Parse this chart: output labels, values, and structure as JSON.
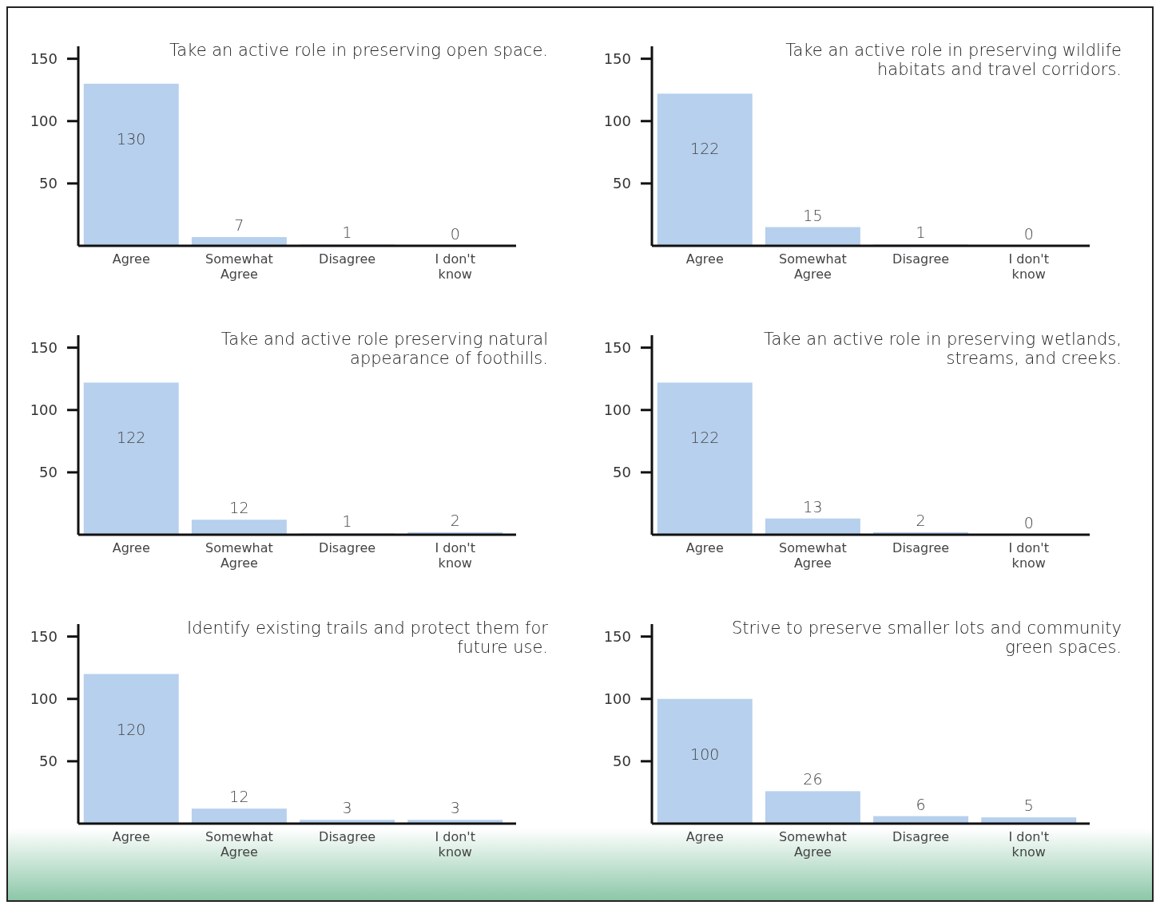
{
  "chart_data": [
    {
      "type": "bar",
      "title": "Take an active role in preserving open space.",
      "categories": [
        "Agree",
        "Somewhat Agree",
        "Disagree",
        "I don't know"
      ],
      "values": [
        130,
        7,
        1,
        0
      ],
      "color": "#aecbeb",
      "ylim": [
        0,
        160
      ],
      "yticks": [
        50,
        100,
        150
      ],
      "data_labels": true
    },
    {
      "type": "bar",
      "title": "Take an active role in preserving wildlife habitats and travel corridors.",
      "categories": [
        "Agree",
        "Somewhat Agree",
        "Disagree",
        "I don't know"
      ],
      "values": [
        122,
        15,
        1,
        0
      ],
      "color": "#aecbeb",
      "ylim": [
        0,
        160
      ],
      "yticks": [
        50,
        100,
        150
      ],
      "data_labels": true
    },
    {
      "type": "bar",
      "title": "Take and active role preserving natural appearance of foothills.",
      "categories": [
        "Agree",
        "Somewhat Agree",
        "Disagree",
        "I don't know"
      ],
      "values": [
        122,
        12,
        1,
        2
      ],
      "color": "#aecbeb",
      "ylim": [
        0,
        160
      ],
      "yticks": [
        50,
        100,
        150
      ],
      "data_labels": true
    },
    {
      "type": "bar",
      "title": "Take an active role in preserving wetlands, streams, and creeks.",
      "categories": [
        "Agree",
        "Somewhat Agree",
        "Disagree",
        "I don't know"
      ],
      "values": [
        122,
        13,
        2,
        0
      ],
      "color": "#aecbeb",
      "ylim": [
        0,
        160
      ],
      "yticks": [
        50,
        100,
        150
      ],
      "data_labels": true
    },
    {
      "type": "bar",
      "title": "Identify existing trails and protect them for future use.",
      "categories": [
        "Agree",
        "Somewhat Agree",
        "Disagree",
        "I don't know"
      ],
      "values": [
        120,
        12,
        3,
        3
      ],
      "color": "#aecbeb",
      "ylim": [
        0,
        160
      ],
      "yticks": [
        50,
        100,
        150
      ],
      "data_labels": true
    },
    {
      "type": "bar",
      "title": "Strive to preserve smaller lots and community green spaces.",
      "categories": [
        "Agree",
        "Somewhat Agree",
        "Disagree",
        "I don't know"
      ],
      "values": [
        100,
        26,
        6,
        5
      ],
      "color": "#aecbeb",
      "ylim": [
        0,
        160
      ],
      "yticks": [
        50,
        100,
        150
      ],
      "data_labels": true
    }
  ]
}
